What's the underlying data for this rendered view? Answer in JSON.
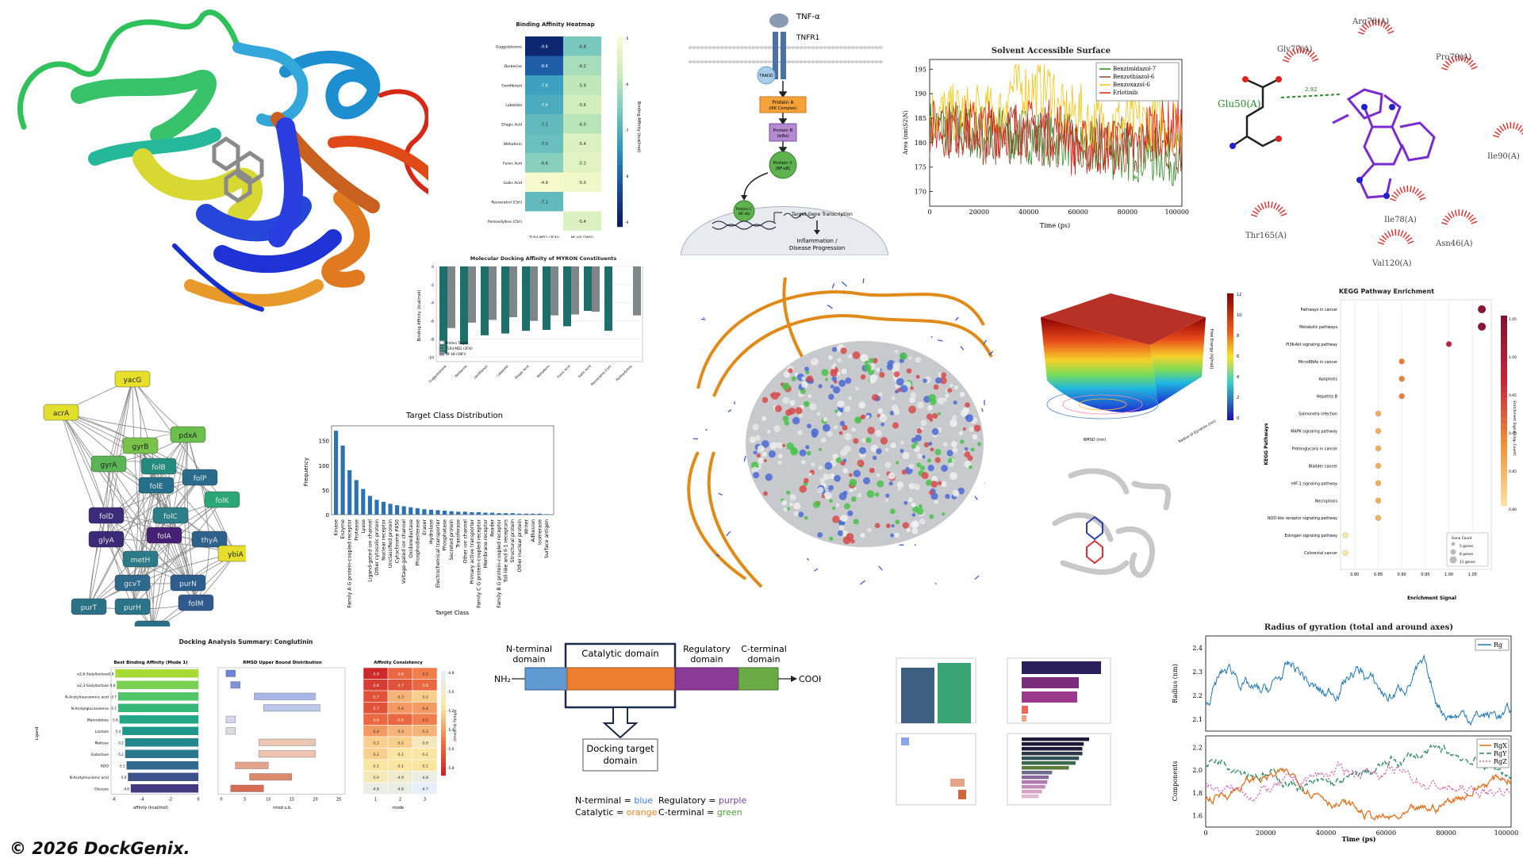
{
  "copyright": "© 2026 DockGenix.",
  "heatmap": {
    "title": "Binding Affinity Heatmap",
    "rows": [
      "Guggulsterone",
      "Berberine",
      "Gemfibrozil",
      "Labetalol",
      "Ellagic Acid",
      "Withaferin",
      "Fulvic Acid",
      "Gallic Acid",
      "Resveratrol (Ctrl)",
      "Pentoxifylline (Ctrl)"
    ],
    "cols": [
      "TLR4-MD2 (3FXI)",
      "NF-kB (1NFI)"
    ],
    "values": [
      [
        "-9.6",
        "-6.8"
      ],
      [
        "-8.6",
        "-6.2"
      ],
      [
        "-7.6",
        "-5.9"
      ],
      [
        "-7.4",
        "-5.6"
      ],
      [
        "-7.1",
        "-6.0"
      ],
      [
        "-7.0",
        "-5.4"
      ],
      [
        "-6.6",
        "-5.3"
      ],
      [
        "-4.9",
        "-5.0"
      ],
      [
        "-7.1",
        ""
      ],
      [
        "",
        "-5.4"
      ]
    ],
    "colorbar_label": "Binding Affinity (kcal/mol)",
    "colorbar_ticks": [
      "-5",
      "-6",
      "-7",
      "-8",
      "-9"
    ]
  },
  "pathway": {
    "ligand": "TNF-α",
    "receptor": "TNFR1",
    "adaptor": "TRADD",
    "box_a": [
      "Protein A",
      "(IKK Complex)"
    ],
    "box_b": [
      "Protein B",
      "(IκBα)"
    ],
    "circle_c": [
      "Protein C",
      "(NF-κB)"
    ],
    "nuclear_c": [
      "Protein C",
      "(NF-κB)"
    ],
    "transcription": "Target Gene Transcription",
    "outcome": [
      "Inflammation /",
      "Disease Progression"
    ]
  },
  "sasa": {
    "title": "Solvent Accessible Surface",
    "ylabel": "Area (nm\\S2\\N)",
    "xlabel": "Time (ps)",
    "legend": [
      "Benzimidazol-7",
      "Benzothiazol-6",
      "Benzoxazol-6",
      "Erlotinib"
    ],
    "colors": [
      "#2e8b22",
      "#8b4a2a",
      "#f2c40f",
      "#e0201b"
    ],
    "yticks": [
      "170",
      "175",
      "180",
      "185",
      "190",
      "195"
    ],
    "xticks": [
      "0",
      "20000",
      "40000",
      "60000",
      "80000",
      "100000"
    ]
  },
  "ligplot": {
    "residues": [
      "Arg76(A)",
      "Gly77(A)",
      "Pro79(A)",
      "Glu50(A)",
      "Ile90(A)",
      "Thr165(A)",
      "Ile78(A)",
      "Asn46(A)",
      "Val120(A)"
    ],
    "hbond": "2.92"
  },
  "docking_bar": {
    "title": "Molecular Docking Affinity of MYRON Constituents",
    "ylabel": "Binding Affinity (kcal/mol)",
    "legend": [
      "Protein Target",
      "TLR4-MD2 (3FXI)",
      "NF-kB (1NFI)"
    ],
    "categories": [
      "Guggulsterone",
      "Berberine",
      "Gemfibrozil",
      "Labetalol",
      "Ellagic Acid",
      "Withaferin",
      "Fulvic Acid",
      "Gallic Acid",
      "Resveratrol (Ctrl)",
      "Pentoxifylline"
    ],
    "yticks": [
      "0",
      "-2",
      "-4",
      "-6",
      "-8",
      "-10"
    ]
  },
  "target_class": {
    "title": "Target Class Distribution",
    "ylabel": "Frequency",
    "xlabel": "Target Class",
    "yticks": [
      "0",
      "50",
      "100",
      "150"
    ],
    "categories": [
      "Kinase",
      "Enzyme",
      "Family A G protein-coupled receptor",
      "Protease",
      "Lyase",
      "Ligand-gated ion channel",
      "Other cytosolic protein",
      "Nuclear receptor",
      "Unclassified protein",
      "Cytochrome P450",
      "Voltage-gated ion channel",
      "Oxidoreductase",
      "Phosphodiesterase",
      "Eraser",
      "Hydrolase",
      "Electrochemical transporter",
      "Phosphatase",
      "Secreted protein",
      "Transferase",
      "Other ion channel",
      "Primary active transporter",
      "Family C G protein-coupled receptor",
      "Membrane receptor",
      "Reader",
      "Family B G protein-coupled receptor",
      "Toll-like and Il-1 receptors",
      "Structural protein",
      "Other nuclear protein",
      "Writer",
      "Adhesion",
      "Isomerase",
      "Surface antigen"
    ],
    "values": [
      170,
      140,
      90,
      70,
      52,
      38,
      30,
      26,
      22,
      19,
      17,
      15,
      13,
      11,
      10,
      9,
      8,
      7,
      6,
      6,
      5,
      5,
      4,
      4,
      3,
      3,
      3,
      2,
      2,
      2,
      2,
      1
    ]
  },
  "network": {
    "nodes": [
      {
        "id": "yacG",
        "c": "#e7e02a"
      },
      {
        "id": "acrA",
        "c": "#e2de2c"
      },
      {
        "id": "gyrB",
        "c": "#7ac34a"
      },
      {
        "id": "pdxA",
        "c": "#6bbf4d"
      },
      {
        "id": "gyrA",
        "c": "#5bb455"
      },
      {
        "id": "folB",
        "c": "#248b7e"
      },
      {
        "id": "folP",
        "c": "#2a6b8c"
      },
      {
        "id": "folE",
        "c": "#256f8a"
      },
      {
        "id": "folK",
        "c": "#2aa677"
      },
      {
        "id": "folD",
        "c": "#3b2b78"
      },
      {
        "id": "folC",
        "c": "#2c7e88"
      },
      {
        "id": "glyA",
        "c": "#3c2a76"
      },
      {
        "id": "thyA",
        "c": "#2e628b"
      },
      {
        "id": "folA",
        "c": "#452073"
      },
      {
        "id": "ybiA",
        "c": "#e5df2b"
      },
      {
        "id": "metH",
        "c": "#2b7a88"
      },
      {
        "id": "gcvT",
        "c": "#2e688b"
      },
      {
        "id": "purN",
        "c": "#2c5e8c"
      },
      {
        "id": "purT",
        "c": "#2b7287"
      },
      {
        "id": "purH",
        "c": "#2b7389"
      },
      {
        "id": "folM",
        "c": "#2f5a8b"
      },
      {
        "id": "purU",
        "c": "#2b7188"
      }
    ]
  },
  "energy_surface": {
    "ylabel": "Free Energy (kJ/mol)",
    "xlabel": "RMSD (nm)",
    "zlabel": "Radius of Gyration (nm)",
    "colorbar_ticks": [
      "12",
      "10",
      "8",
      "6",
      "4",
      "2",
      "0"
    ]
  },
  "kegg": {
    "title": "KEGG Pathway Enrichment",
    "ylabel": "KEGG Pathways",
    "xlabel": "Enrichment Signal",
    "cbar_label": "Enrichment Signal (log₂ Count)",
    "pathways": [
      "Pathways in cancer",
      "Metabolic pathways",
      "PI3K-Akt signaling pathway",
      "MicroRNAs in cancer",
      "Apoptosis",
      "Hepatitis B",
      "Salmonella infection",
      "MAPK signaling pathway",
      "Proteoglycans in cancer",
      "Bladder cancer",
      "HIF-1 signaling pathway",
      "Necroptosis",
      "NOD-like receptor signaling pathway",
      "Estrogen signaling pathway",
      "Colorectal cancer"
    ],
    "values": [
      1.07,
      1.07,
      1.0,
      0.9,
      0.9,
      0.9,
      0.85,
      0.85,
      0.85,
      0.85,
      0.85,
      0.85,
      0.85,
      0.78,
      0.78
    ],
    "xticks": [
      "0.80",
      "0.85",
      "0.90",
      "0.95",
      "1.00",
      "1.05"
    ],
    "cbar_ticks": [
      "1.05",
      "1.00",
      "0.95",
      "0.90",
      "0.85",
      "0.80"
    ],
    "size_legend": [
      "Gene Count",
      "5 genes",
      "8 genes",
      "11 genes"
    ]
  },
  "docking_summary": {
    "title": "Docking Analysis Summary: Conglutinin",
    "panel1_title": "Best Binding Affinity (Mode 1)",
    "panel2_title": "RMSD Upper Bound Distribution",
    "panel3_title": "Affinity Consistency",
    "ylabel": "Ligand",
    "xlabel1": "affinity (kcal/mol)",
    "xlabel2": "rmsd u.b.",
    "xlabel3": "mode",
    "cbar_label": "Affinity (kcal/mol)",
    "ligands": [
      "α2,6-Sialyllactose",
      "α2,3-Sialyllactose",
      "N-Acetylneuraminic acid",
      "N-Acetylglucosamine",
      "Mannobiose",
      "Lactose",
      "Maltose",
      "Galactose",
      "KDO",
      "N-Acetylmuramic acid",
      "Glucose"
    ],
    "best": [
      "-5.9",
      "-5.8",
      "-5.7",
      "-5.7",
      "-5.6",
      "-5.4",
      "-5.2",
      "-5.2",
      "-5.1",
      "-5.0",
      "-4.8"
    ],
    "matrix": [
      [
        "-5.9",
        "-5.6",
        "-5.5"
      ],
      [
        "-5.8",
        "-5.7",
        "-5.6"
      ],
      [
        "-5.7",
        "-5.3",
        "-5.2"
      ],
      [
        "-5.7",
        "-5.4",
        "-5.4"
      ],
      [
        "-5.6",
        "-5.6",
        "-5.5"
      ],
      [
        "-5.4",
        "-5.3",
        "-5.3"
      ],
      [
        "-5.2",
        "-5.2",
        "-5.0"
      ],
      [
        "-5.2",
        "-5.1",
        "-5.1"
      ],
      [
        "-5.1",
        "-5.1",
        "-5.1"
      ],
      [
        "-5.0",
        "-4.9",
        "-4.8"
      ],
      [
        "-4.8",
        "-4.8",
        "-4.7"
      ]
    ],
    "x1ticks": [
      "-6",
      "-4",
      "-2",
      "0"
    ],
    "x2ticks": [
      "0",
      "5",
      "10",
      "15",
      "20",
      "25"
    ],
    "x3ticks": [
      "1",
      "2",
      "3"
    ],
    "cbar_ticks": [
      "-4.8",
      "-5.0",
      "-5.2",
      "-5.4",
      "-5.6",
      "-5.8"
    ]
  },
  "domains": {
    "nh2": "NH₂",
    "cooh": "COOH",
    "labels": [
      [
        "N-terminal",
        "domain"
      ],
      [
        "Catalytic domain"
      ],
      [
        "Regulatory",
        "domain"
      ],
      [
        "C-terminal",
        "domain"
      ]
    ],
    "target": [
      "Docking target",
      "domain"
    ],
    "legend": [
      {
        "text": "N-terminal = ",
        "color_text": "blue",
        "color": "#3f7fd0"
      },
      {
        "text": "Regulatory = ",
        "color_text": "purple",
        "color": "#7b3fa0"
      },
      {
        "text": "Catalytic = ",
        "color_text": "orange",
        "color": "#e58024"
      },
      {
        "text": "C-terminal = ",
        "color_text": "green",
        "color": "#4a9a3a"
      }
    ]
  },
  "rg": {
    "title": "Radius of gyration (total and around axes)",
    "ylabel1": "Radius (nm)",
    "ylabel2": "Components",
    "xlabel": "Time (ps)",
    "legend1": [
      "Rg"
    ],
    "legend2": [
      "RgX",
      "RgY",
      "RgZ"
    ],
    "y1ticks": [
      "2.1",
      "2.2",
      "2.3",
      "2.4"
    ],
    "y2ticks": [
      "1.6",
      "1.8",
      "2.0",
      "2.2"
    ],
    "xticks": [
      "0",
      "20000",
      "40000",
      "60000",
      "80000",
      "100000"
    ]
  }
}
